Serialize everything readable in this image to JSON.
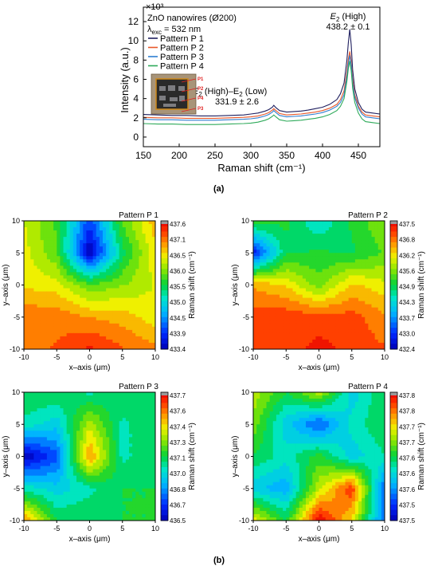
{
  "figure": {
    "panel_a_label": "(a)",
    "panel_b_label": "(b)"
  },
  "chart_data": [
    {
      "type": "line",
      "title": "",
      "xlabel": "Raman shift (cm⁻¹)",
      "ylabel": "Intensity (a.u.)",
      "y_multiplier": "×10³",
      "xlim": [
        150,
        480
      ],
      "ylim": [
        -1,
        13.5
      ],
      "xticks": [
        150,
        200,
        250,
        300,
        350,
        400,
        450
      ],
      "yticks": [
        0,
        2,
        4,
        6,
        8,
        10,
        12
      ],
      "grid": false,
      "legend_title_line1": "ZnO nanowires (Ø200)",
      "legend_title_line2": "λ",
      "legend_title_sub": "exc",
      "legend_title_rest": " = 532 nm",
      "legend_position": "top-left",
      "annotations": [
        {
          "text_pre": "E",
          "text_sub": "2",
          "text_post": " (High)",
          "value": "438.2 ± 0.1"
        },
        {
          "text_pre": "E",
          "text_sub": "2",
          "text_post": " (High)–E",
          "text_sub2": "2",
          "text_post2": " (Low)",
          "value": "331.9 ± 2.6"
        }
      ],
      "inset_labels": [
        "P1",
        "P2",
        "P4",
        "P3"
      ],
      "series": [
        {
          "name": "Pattern P 1",
          "color": "#1f1f5f",
          "x": [
            150,
            170,
            190,
            210,
            230,
            250,
            270,
            290,
            300,
            310,
            320,
            325,
            330,
            332,
            335,
            340,
            350,
            360,
            370,
            380,
            390,
            400,
            410,
            420,
            425,
            430,
            434,
            436,
            438,
            440,
            442,
            445,
            450,
            455,
            460,
            470,
            480
          ],
          "y": [
            2.35,
            2.3,
            2.25,
            2.25,
            2.2,
            2.2,
            2.25,
            2.3,
            2.4,
            2.5,
            2.7,
            2.85,
            3.1,
            3.3,
            3.05,
            2.75,
            2.6,
            2.65,
            2.7,
            2.8,
            2.95,
            3.1,
            3.4,
            3.9,
            4.5,
            5.6,
            8.0,
            9.8,
            11.2,
            9.6,
            7.0,
            5.0,
            3.6,
            2.9,
            2.6,
            2.5,
            2.4
          ]
        },
        {
          "name": "Pattern P 2",
          "color": "#e8582a",
          "x": [
            150,
            170,
            190,
            210,
            230,
            250,
            270,
            290,
            300,
            310,
            320,
            325,
            330,
            332,
            335,
            340,
            350,
            360,
            370,
            380,
            390,
            400,
            410,
            420,
            425,
            430,
            434,
            436,
            438,
            440,
            442,
            445,
            450,
            455,
            460,
            470,
            480
          ],
          "y": [
            2.05,
            2.0,
            2.0,
            1.95,
            1.95,
            1.95,
            2.0,
            2.05,
            2.1,
            2.2,
            2.4,
            2.55,
            2.8,
            2.95,
            2.75,
            2.45,
            2.3,
            2.35,
            2.4,
            2.5,
            2.6,
            2.75,
            3.0,
            3.4,
            3.9,
            4.8,
            6.8,
            8.1,
            8.9,
            7.9,
            6.0,
            4.4,
            3.2,
            2.6,
            2.3,
            2.2,
            2.1
          ]
        },
        {
          "name": "Pattern P 3",
          "color": "#2f7fd0",
          "x": [
            150,
            170,
            190,
            210,
            230,
            250,
            270,
            290,
            300,
            310,
            320,
            325,
            330,
            332,
            335,
            340,
            350,
            360,
            370,
            380,
            390,
            400,
            410,
            420,
            425,
            430,
            434,
            436,
            438,
            440,
            442,
            445,
            450,
            455,
            460,
            470,
            480
          ],
          "y": [
            1.85,
            1.8,
            1.8,
            1.75,
            1.75,
            1.75,
            1.8,
            1.85,
            1.9,
            2.0,
            2.2,
            2.35,
            2.6,
            2.75,
            2.55,
            2.25,
            2.1,
            2.15,
            2.2,
            2.3,
            2.4,
            2.55,
            2.8,
            3.2,
            3.6,
            4.4,
            6.3,
            7.6,
            8.5,
            7.5,
            5.6,
            4.1,
            3.0,
            2.4,
            2.1,
            2.0,
            1.9
          ]
        },
        {
          "name": "Pattern P 4",
          "color": "#2eaa5a",
          "x": [
            150,
            170,
            190,
            210,
            230,
            250,
            270,
            290,
            300,
            310,
            320,
            325,
            330,
            332,
            335,
            340,
            350,
            360,
            370,
            380,
            390,
            400,
            410,
            420,
            425,
            430,
            434,
            436,
            438,
            440,
            442,
            445,
            450,
            455,
            460,
            470,
            480
          ],
          "y": [
            1.4,
            1.35,
            1.35,
            1.3,
            1.3,
            1.3,
            1.35,
            1.4,
            1.45,
            1.55,
            1.75,
            1.9,
            2.15,
            2.3,
            2.1,
            1.8,
            1.65,
            1.7,
            1.75,
            1.85,
            1.95,
            2.1,
            2.35,
            2.75,
            3.2,
            4.0,
            5.8,
            7.1,
            7.9,
            6.9,
            5.1,
            3.6,
            2.5,
            1.9,
            1.6,
            1.5,
            1.4
          ]
        }
      ]
    },
    {
      "type": "heatmap",
      "title": "Pattern P 1",
      "xlabel": "x–axis (μm)",
      "ylabel": "y–axis (μm)",
      "colorbar_label": "Raman shift (cm⁻¹)",
      "xlim": [
        -10,
        10
      ],
      "ylim": [
        -10,
        10
      ],
      "xticks": [
        -10,
        -5,
        0,
        5,
        10
      ],
      "yticks": [
        -10,
        -5,
        0,
        5,
        10
      ],
      "colorbar_ticks": [
        "437.6",
        "437.1",
        "436.5",
        "436.0",
        "435.5",
        "435.0",
        "434.5",
        "433.9",
        "433.4"
      ],
      "vmin": 433.4,
      "vmax": 437.6,
      "x": [
        -10,
        -5,
        0,
        5,
        10
      ],
      "y": [
        10,
        5,
        0,
        -5,
        -10
      ],
      "z": [
        [
          436.3,
          435.7,
          434.0,
          435.8,
          436.7
        ],
        [
          436.4,
          435.8,
          433.4,
          435.4,
          436.5
        ],
        [
          436.5,
          436.4,
          435.8,
          436.0,
          436.3
        ],
        [
          437.0,
          437.0,
          436.8,
          436.7,
          436.4
        ],
        [
          437.0,
          437.1,
          437.4,
          437.1,
          436.9
        ]
      ]
    },
    {
      "type": "heatmap",
      "title": "Pattern P 2",
      "xlabel": "x–axis (μm)",
      "ylabel": "y–axis (μm)",
      "colorbar_label": "Raman shift (cm⁻¹)",
      "xlim": [
        -10,
        10
      ],
      "ylim": [
        -10,
        10
      ],
      "xticks": [
        -10,
        -5,
        0,
        5,
        10
      ],
      "yticks": [
        -10,
        -5,
        0,
        5,
        10
      ],
      "colorbar_ticks": [
        "437.5",
        "436.8",
        "436.2",
        "435.6",
        "434.9",
        "434.3",
        "433.7",
        "433.0",
        "432.4"
      ],
      "vmin": 432.4,
      "vmax": 437.5,
      "x": [
        -10,
        -5,
        0,
        5,
        10
      ],
      "y": [
        10,
        5,
        0,
        -5,
        -10
      ],
      "z": [
        [
          435.2,
          435.0,
          434.3,
          435.0,
          435.6
        ],
        [
          432.8,
          434.9,
          435.0,
          434.9,
          435.3
        ],
        [
          436.5,
          436.2,
          435.4,
          436.3,
          436.0
        ],
        [
          437.0,
          437.1,
          437.0,
          437.0,
          436.6
        ],
        [
          437.1,
          437.0,
          437.3,
          437.1,
          436.9
        ]
      ]
    },
    {
      "type": "heatmap",
      "title": "Pattern P 3",
      "xlabel": "x–axis (μm)",
      "ylabel": "y–axis (μm)",
      "colorbar_label": "Raman shift (cm⁻¹)",
      "xlim": [
        -10,
        10
      ],
      "ylim": [
        -10,
        10
      ],
      "xticks": [
        -10,
        -5,
        0,
        5,
        10
      ],
      "yticks": [
        -10,
        -5,
        0,
        5,
        10
      ],
      "colorbar_ticks": [
        "437.7",
        "437.6",
        "437.4",
        "437.3",
        "437.1",
        "437.0",
        "436.8",
        "436.7",
        "436.5"
      ],
      "vmin": 436.5,
      "vmax": 437.7,
      "x": [
        -10,
        -5,
        0,
        5,
        10
      ],
      "y": [
        10,
        5,
        0,
        -5,
        -10
      ],
      "z": [
        [
          437.1,
          437.1,
          437.0,
          437.1,
          437.1
        ],
        [
          437.0,
          436.9,
          437.3,
          437.0,
          437.1
        ],
        [
          436.5,
          436.7,
          437.5,
          437.0,
          437.1
        ],
        [
          437.0,
          436.9,
          437.0,
          437.1,
          437.1
        ],
        [
          437.5,
          437.1,
          437.1,
          437.1,
          437.1
        ]
      ]
    },
    {
      "type": "heatmap",
      "title": "Pattern P 4",
      "xlabel": "x–axis (μm)",
      "ylabel": "y–axis (μm)",
      "colorbar_label": "Raman shift (cm⁻¹)",
      "xlim": [
        -10,
        10
      ],
      "ylim": [
        -10,
        10
      ],
      "xticks": [
        -10,
        -5,
        0,
        5,
        10
      ],
      "yticks": [
        -10,
        -5,
        0,
        5,
        10
      ],
      "colorbar_ticks": [
        "437.8",
        "437.8",
        "437.7",
        "437.7",
        "437.6",
        "437.6",
        "437.6",
        "437.5",
        "437.5"
      ],
      "vmin": 437.5,
      "vmax": 437.8,
      "x": [
        -10,
        -5,
        0,
        5,
        10
      ],
      "y": [
        10,
        5,
        0,
        -5,
        -10
      ],
      "z": [
        [
          437.7,
          437.65,
          437.7,
          437.6,
          437.65
        ],
        [
          437.68,
          437.6,
          437.55,
          437.62,
          437.65
        ],
        [
          437.65,
          437.62,
          437.66,
          437.6,
          437.63
        ],
        [
          437.6,
          437.58,
          437.7,
          437.78,
          437.55
        ],
        [
          437.72,
          437.65,
          437.8,
          437.72,
          437.55
        ]
      ]
    }
  ]
}
